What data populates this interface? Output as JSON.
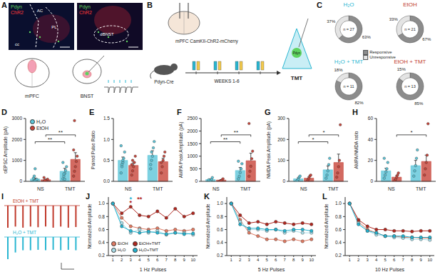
{
  "chart_data": [
    {
      "panel": "C",
      "type": "pie",
      "title": "H₂O",
      "color": "#29b6d1",
      "legend": "center",
      "categories": [
        "Responsive",
        "Unresponsive"
      ],
      "values": [
        63,
        37
      ],
      "value_labels": [
        "63%",
        "37%"
      ],
      "colors": [
        "#8c8c8c",
        "#e4e4e4"
      ],
      "annotation": "n = 27"
    },
    {
      "type": "pie",
      "title": "EtOH",
      "color": "#c0392b",
      "categories": [
        "Responsive",
        "Unresponsive"
      ],
      "values": [
        67,
        33
      ],
      "value_labels": [
        "67%",
        "33%"
      ],
      "colors": [
        "#8c8c8c",
        "#e4e4e4"
      ],
      "annotation": "n = 21"
    },
    {
      "type": "pie",
      "title": "H₂O + TMT",
      "color": "#29b6d1",
      "categories": [
        "Responsive",
        "Unresponsive"
      ],
      "values": [
        82,
        18
      ],
      "value_labels": [
        "82%",
        "18%"
      ],
      "colors": [
        "#8c8c8c",
        "#e4e4e4"
      ],
      "annotation": "n = 11"
    },
    {
      "type": "pie",
      "title": "EtOH + TMT",
      "color": "#c0392b",
      "categories": [
        "Responsive",
        "Unresponsive"
      ],
      "values": [
        85,
        15
      ],
      "value_labels": [
        "85%",
        "15%"
      ],
      "colors": [
        "#8c8c8c",
        "#e4e4e4"
      ],
      "annotation": "n = 13"
    },
    {
      "panel": "D",
      "type": "bar",
      "y_label": "oEPSC Amplitude (pA)",
      "categories": [
        "NS",
        "TMT"
      ],
      "ylim": [
        0,
        3000
      ],
      "yticks": [
        0,
        1000,
        2000,
        3000
      ],
      "legend": "upper left",
      "series": [
        {
          "name": "H₂O",
          "color": "#5cc6d9",
          "values": [
            110,
            480
          ],
          "errors": [
            50,
            140
          ],
          "points": [
            [
              0,
              10,
              30,
              60,
              90,
              150,
              250,
              600
            ],
            [
              120,
              250,
              380,
              520,
              700,
              900,
              350,
              100
            ]
          ]
        },
        {
          "name": "EtOH",
          "color": "#c8453a",
          "values": [
            75,
            1050
          ],
          "errors": [
            25,
            320
          ],
          "points": [
            [
              0,
              20,
              40,
              60,
              100,
              180,
              50
            ],
            [
              250,
              480,
              700,
              950,
              1200,
              1500,
              2900
            ]
          ]
        }
      ],
      "annotations": [
        {
          "text": "**",
          "from": {
            "category": "NS",
            "series": "EtOH"
          },
          "to": {
            "category": "TMT",
            "series": "EtOH"
          }
        },
        {
          "text": "**",
          "from": {
            "category": "NS",
            "series": "H₂O"
          },
          "to": {
            "category": "TMT",
            "series": "H₂O"
          }
        }
      ]
    },
    {
      "panel": "E",
      "type": "bar",
      "y_label": "Paired Pulse Ratio",
      "categories": [
        "NS",
        "TMT"
      ],
      "ylim": [
        0,
        1.5
      ],
      "yticks": [
        {
          "value": 0,
          "label": "0.0"
        },
        0.5,
        {
          "value": 1,
          "label": "1.0"
        },
        1.5
      ],
      "series": [
        {
          "color": "#5cc6d9",
          "values": [
            0.5,
            0.62
          ],
          "errors": [
            0.08,
            0.11
          ],
          "points": [
            [
              0.2,
              0.35,
              0.45,
              0.55,
              0.7,
              0.85,
              0.4,
              0.5
            ],
            [
              0.3,
              0.5,
              0.6,
              0.8,
              0.95,
              0.4,
              0.7
            ]
          ]
        },
        {
          "color": "#c8453a",
          "values": [
            0.38,
            0.47
          ],
          "errors": [
            0.06,
            0.08
          ],
          "points": [
            [
              0.15,
              0.25,
              0.35,
              0.45,
              0.6,
              0.4,
              0.5
            ],
            [
              0.2,
              0.35,
              0.5,
              0.6,
              0.7,
              0.45
            ]
          ]
        }
      ]
    },
    {
      "panel": "F",
      "type": "bar",
      "y_label": "AMPA Peak Amplitude (pA)",
      "categories": [
        "NS",
        "TMT"
      ],
      "ylim": [
        0,
        2500
      ],
      "yticks": [
        0,
        500,
        1000,
        1500,
        2000,
        2500
      ],
      "series": [
        {
          "name": "H₂O",
          "color": "#5cc6d9",
          "values": [
            70,
            430
          ],
          "errors": [
            30,
            120
          ],
          "points": [
            [
              0,
              20,
              40,
              80,
              150,
              60
            ],
            [
              100,
              200,
              350,
              500,
              700,
              800
            ]
          ]
        },
        {
          "name": "EtOH",
          "color": "#c8453a",
          "values": [
            50,
            820
          ],
          "errors": [
            20,
            300
          ],
          "points": [
            [
              0,
              15,
              30,
              60,
              100
            ],
            [
              200,
              400,
              600,
              900,
              1200,
              2300
            ]
          ]
        }
      ],
      "annotations": [
        {
          "text": "**",
          "from": {
            "category": "NS",
            "series": "EtOH"
          },
          "to": {
            "category": "TMT",
            "series": "EtOH"
          }
        },
        {
          "text": "**",
          "from": {
            "category": "NS",
            "series": "H₂O"
          },
          "to": {
            "category": "TMT",
            "series": "H₂O"
          }
        }
      ]
    },
    {
      "panel": "G",
      "type": "bar",
      "y_label": "NMDA Peak Amplitude (pA)",
      "categories": [
        "NS",
        "TMT"
      ],
      "ylim": [
        0,
        300
      ],
      "yticks": [
        0,
        100,
        200,
        300
      ],
      "series": [
        {
          "name": "H₂O",
          "color": "#5cc6d9",
          "values": [
            12,
            55
          ],
          "errors": [
            5,
            18
          ],
          "points": [
            [
              0,
              5,
              10,
              20,
              25
            ],
            [
              15,
              30,
              50,
              80,
              110
            ]
          ]
        },
        {
          "name": "EtOH",
          "color": "#c8453a",
          "values": [
            15,
            90
          ],
          "errors": [
            6,
            40
          ],
          "points": [
            [
              0,
              8,
              15,
              25,
              30
            ],
            [
              20,
              40,
              70,
              100,
              270
            ]
          ]
        }
      ],
      "annotations": [
        {
          "text": "*",
          "from": {
            "category": "NS",
            "series": "EtOH"
          },
          "to": {
            "category": "TMT",
            "series": "EtOH"
          }
        },
        {
          "text": "*",
          "from": {
            "category": "NS",
            "series": "H₂O"
          },
          "to": {
            "category": "TMT",
            "series": "H₂O"
          }
        }
      ]
    },
    {
      "panel": "H",
      "type": "bar",
      "y_label": "AMPA/NMDA ratio",
      "categories": [
        "NS",
        "TMT"
      ],
      "ylim": [
        0,
        60
      ],
      "yticks": [
        0,
        20,
        40,
        60
      ],
      "series": [
        {
          "name": "H₂O",
          "color": "#5cc6d9",
          "values": [
            10,
            15
          ],
          "errors": [
            2.5,
            5
          ],
          "points": [
            [
              3,
              6,
              9,
              12,
              18,
              22
            ],
            [
              5,
              10,
              15,
              22,
              30
            ]
          ]
        },
        {
          "name": "EtOH",
          "color": "#c8453a",
          "values": [
            4,
            19
          ],
          "errors": [
            1.5,
            6
          ],
          "points": [
            [
              1,
              2,
              4,
              6,
              8
            ],
            [
              6,
              12,
              18,
              25,
              55
            ]
          ]
        }
      ],
      "annotations": [
        {
          "text": "*",
          "from": {
            "category": "NS",
            "series": "EtOH"
          },
          "to": {
            "category": "TMT",
            "series": "EtOH"
          }
        }
      ]
    },
    {
      "panel": "I",
      "type": "bar",
      "tick_labels": false,
      "categories": [
        null,
        null,
        null,
        null,
        null,
        null,
        null,
        null,
        null,
        null
      ],
      "ylim": [
        -1.1,
        0
      ],
      "series": [
        {
          "name": "EtOH + TMT",
          "color": "#c0392b",
          "values": [
            -1,
            -0.95,
            -1,
            -0.95,
            -0.98,
            -0.95,
            -1,
            -0.95,
            -1,
            -0.97
          ]
        },
        {
          "name": "H₂O + TMT",
          "color": "#29b6d1",
          "values": [
            -1,
            -0.7,
            -0.6,
            -0.6,
            -0.58,
            -0.6,
            -0.58,
            -0.6,
            -0.58,
            -0.6
          ]
        }
      ]
    },
    {
      "panel": "J",
      "type": "line",
      "x_label": "1 Hz Pulses",
      "y_label": "Normalized Amplitude",
      "x": [
        1,
        2,
        3,
        4,
        5,
        6,
        7,
        8,
        9,
        10
      ],
      "xlim": [
        0.5,
        10.5
      ],
      "xticks": [
        1,
        2,
        3,
        4,
        5,
        6,
        7,
        8,
        9,
        10
      ],
      "ylim": [
        0.2,
        1.1
      ],
      "yticks": [
        0.2,
        0.4,
        0.6,
        0.8,
        {
          "value": 1,
          "label": "1.0"
        }
      ],
      "legend": "lower left",
      "series": [
        {
          "name": "EtOH",
          "color": "#e07a62",
          "values": [
            1,
            0.78,
            0.65,
            0.62,
            0.6,
            0.62,
            0.58,
            0.6,
            0.58,
            0.6
          ]
        },
        {
          "name": "H₂O",
          "color": "#a9dde8",
          "values": [
            1,
            0.7,
            0.55,
            0.6,
            0.55,
            0.58,
            0.52,
            0.55,
            0.55,
            0.52
          ]
        },
        {
          "name": "EtOH+TMT",
          "color": "#b0261e",
          "values": [
            1,
            0.85,
            0.95,
            0.82,
            0.8,
            0.88,
            0.78,
            0.92,
            0.8,
            0.85
          ]
        },
        {
          "name": "H₂O+TMT",
          "color": "#22b2cf",
          "values": [
            1,
            0.65,
            0.58,
            0.55,
            0.57,
            0.55,
            0.53,
            0.55,
            0.53,
            0.54
          ]
        }
      ],
      "annotations": [
        {
          "text": "*",
          "x": 3,
          "series": "H₂O+TMT"
        },
        {
          "text": "*",
          "x": 3,
          "series": "EtOH+TMT"
        },
        {
          "text": "**",
          "x": 4,
          "series": "EtOH+TMT"
        }
      ]
    },
    {
      "panel": "K",
      "type": "line",
      "x_label": "5 Hz Pulses",
      "y_label": "Normalized Amplitude",
      "x": [
        1,
        2,
        3,
        4,
        5,
        6,
        7,
        8,
        9,
        10
      ],
      "xlim": [
        0.5,
        10.5
      ],
      "xticks": [
        1,
        2,
        3,
        4,
        5,
        6,
        7,
        8,
        9,
        10
      ],
      "ylim": [
        0.2,
        1.1
      ],
      "yticks": [
        0.2,
        0.4,
        0.6,
        0.8,
        {
          "value": 1,
          "label": "1.0"
        }
      ],
      "series": [
        {
          "color": "#e07a62",
          "values": [
            1,
            0.75,
            0.55,
            0.5,
            0.45,
            0.45,
            0.42,
            0.45,
            0.42,
            0.45
          ]
        },
        {
          "color": "#a9dde8",
          "values": [
            1,
            0.72,
            0.6,
            0.6,
            0.58,
            0.6,
            0.55,
            0.58,
            0.55,
            0.55
          ]
        },
        {
          "color": "#b0261e",
          "values": [
            1,
            0.82,
            0.7,
            0.72,
            0.68,
            0.72,
            0.7,
            0.68,
            0.7,
            0.68
          ]
        },
        {
          "color": "#22b2cf",
          "values": [
            1,
            0.68,
            0.62,
            0.62,
            0.6,
            0.6,
            0.58,
            0.6,
            0.6,
            0.58
          ]
        }
      ]
    },
    {
      "panel": "L",
      "type": "line",
      "x_label": "10 Hz Pulses",
      "y_label": "Normalized Amplitude",
      "x": [
        1,
        2,
        3,
        4,
        5,
        6,
        7,
        8,
        9,
        10
      ],
      "xlim": [
        0.5,
        10.5
      ],
      "xticks": [
        1,
        2,
        3,
        4,
        5,
        6,
        7,
        8,
        9,
        10
      ],
      "ylim": [
        0.2,
        1.1
      ],
      "yticks": [
        0.2,
        0.4,
        0.6,
        0.8,
        {
          "value": 1,
          "label": "1.0"
        }
      ],
      "series": [
        {
          "color": "#e07a62",
          "values": [
            1,
            0.72,
            0.6,
            0.55,
            0.5,
            0.5,
            0.48,
            0.48,
            0.47,
            0.47
          ]
        },
        {
          "color": "#a9dde8",
          "values": [
            1,
            0.7,
            0.58,
            0.52,
            0.5,
            0.48,
            0.47,
            0.45,
            0.45,
            0.44
          ]
        },
        {
          "color": "#b0261e",
          "values": [
            1,
            0.75,
            0.65,
            0.6,
            0.6,
            0.58,
            0.58,
            0.57,
            0.58,
            0.58
          ]
        },
        {
          "color": "#22b2cf",
          "values": [
            1,
            0.68,
            0.58,
            0.55,
            0.5,
            0.5,
            0.5,
            0.48,
            0.48,
            0.48
          ]
        }
      ]
    }
  ],
  "image_panel": {
    "panel": "A",
    "images": [
      {
        "channels": [
          {
            "text": "Pdyn",
            "color": "#5fd35f"
          },
          {
            "text": "ChR2",
            "color": "#ff3b3b"
          }
        ],
        "regions": [
          "AC",
          "PL",
          "cc"
        ]
      },
      {
        "channels": [
          {
            "text": "Pdyn",
            "color": "#5fd35f"
          },
          {
            "text": "ChR2",
            "color": "#ff3b3b"
          }
        ],
        "regions": [
          "dBNST"
        ]
      }
    ],
    "schematics": [
      "mPFC",
      "BNST"
    ]
  },
  "diagram": {
    "panel": "B",
    "injection": "mPFC CamKII-ChR2-mCherry",
    "mouse": "Pdyn-Cre",
    "timeline": "WEEKS 1-6",
    "stress": "TMT",
    "cell": "Pdyn"
  }
}
